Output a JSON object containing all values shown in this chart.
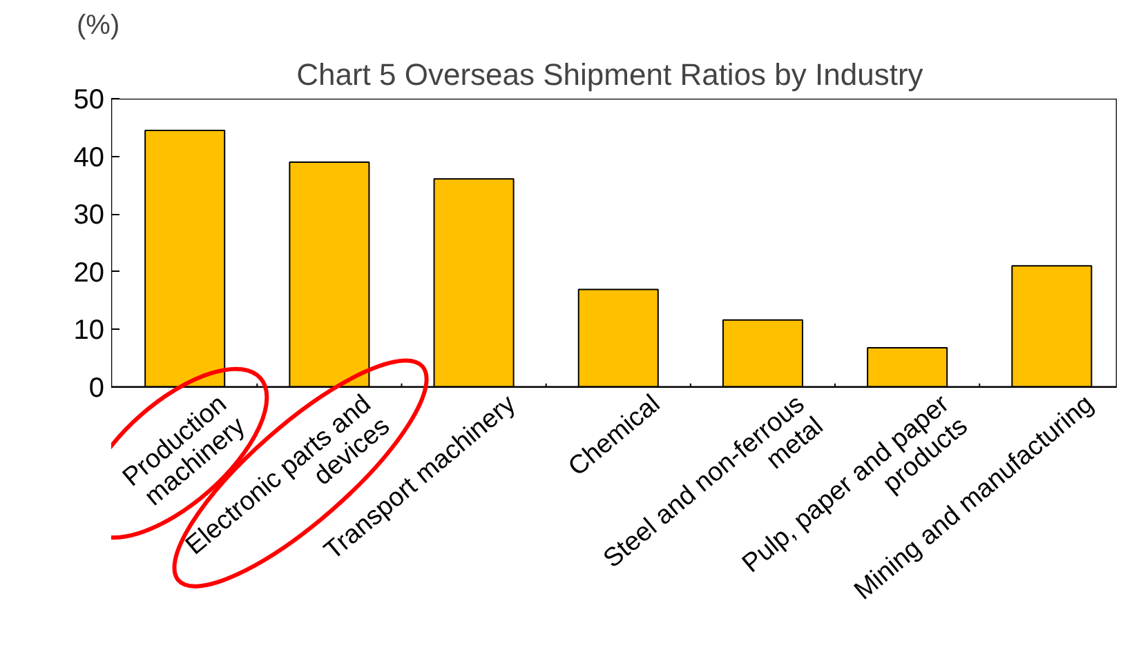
{
  "chart_data": {
    "type": "bar",
    "title": "Chart 5  Overseas Shipment Ratios by Industry",
    "ylabel": "(%)",
    "categories": [
      "Production\nmachinery",
      "Electronic parts and\ndevices",
      "Transport machinery",
      "Chemical",
      "Steel and non-ferrous\nmetal",
      "Pulp, paper and paper\nproducts",
      "Mining and manufacturing"
    ],
    "values": [
      44.5,
      39.0,
      36.1,
      16.9,
      11.6,
      6.8,
      21.0
    ],
    "color": "#ffc000",
    "ylim": [
      0,
      50
    ],
    "yticks": [
      0,
      10,
      20,
      30,
      40,
      50
    ],
    "grid": false
  }
}
